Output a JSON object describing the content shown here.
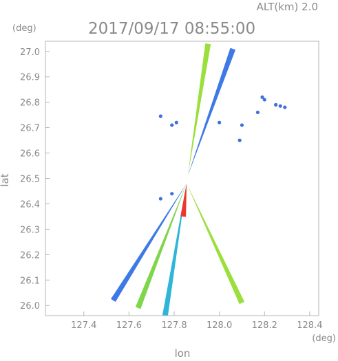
{
  "header": {
    "alt_label": "ALT(km)  2.0",
    "timestamp": "2017/09/17 08:55:00",
    "y_unit": "(deg)",
    "x_unit": "(deg)"
  },
  "chart_data": {
    "type": "scatter",
    "title": "2017/09/17 08:55:00",
    "subtitle": "ALT(km)  2.0",
    "xlabel": "lon",
    "ylabel": "lat",
    "xunit": "(deg)",
    "yunit": "(deg)",
    "xlim": [
      127.23,
      128.44
    ],
    "ylim": [
      25.96,
      27.04
    ],
    "grid": false,
    "legend": "none",
    "x_ticks": [
      {
        "value": 127.4,
        "label": "127.4"
      },
      {
        "value": 127.6,
        "label": "127.6"
      },
      {
        "value": 127.8,
        "label": "127.8"
      },
      {
        "value": 128.0,
        "label": "128.0"
      },
      {
        "value": 128.2,
        "label": "128.2"
      },
      {
        "value": 128.4,
        "label": "128.4"
      }
    ],
    "y_ticks": [
      {
        "value": 26.0,
        "label": "26.0"
      },
      {
        "value": 26.1,
        "label": "26.1"
      },
      {
        "value": 26.2,
        "label": "26.2"
      },
      {
        "value": 26.3,
        "label": "26.3"
      },
      {
        "value": 26.4,
        "label": "26.4"
      },
      {
        "value": 26.5,
        "label": "26.5"
      },
      {
        "value": 26.6,
        "label": "26.6"
      },
      {
        "value": 26.7,
        "label": "26.7"
      },
      {
        "value": 26.8,
        "label": "26.8"
      },
      {
        "value": 26.9,
        "label": "26.9"
      },
      {
        "value": 27.0,
        "label": "27.0"
      }
    ],
    "scan_origins": [
      {
        "lon": 127.855,
        "lat": 26.48
      },
      {
        "lon": 127.86,
        "lat": 26.51
      }
    ],
    "radial_streaks": [
      {
        "origin": 0,
        "end": {
          "lon": 127.53,
          "lat": 26.02
        },
        "color": "#3d7ae6"
      },
      {
        "origin": 0,
        "end": {
          "lon": 127.64,
          "lat": 25.99
        },
        "color": "#7fd64a"
      },
      {
        "origin": 0,
        "end": {
          "lon": 127.76,
          "lat": 25.96
        },
        "color": "#2fb5d8"
      },
      {
        "origin": 0,
        "end": {
          "lon": 128.1,
          "lat": 26.01
        },
        "color": "#9adf3c"
      },
      {
        "origin": 0,
        "end": {
          "lon": 127.84,
          "lat": 26.35
        },
        "color": "#e83a2f"
      },
      {
        "origin": 1,
        "end": {
          "lon": 127.95,
          "lat": 27.03
        },
        "color": "#9adf3c"
      },
      {
        "origin": 1,
        "end": {
          "lon": 128.06,
          "lat": 27.01
        },
        "color": "#3d7ae6"
      }
    ],
    "echo_points": [
      {
        "lon": 128.19,
        "lat": 26.82,
        "color": "#3d6fe0"
      },
      {
        "lon": 128.2,
        "lat": 26.81,
        "color": "#3d6fe0"
      },
      {
        "lon": 128.25,
        "lat": 26.79,
        "color": "#3d6fe0"
      },
      {
        "lon": 128.27,
        "lat": 26.785,
        "color": "#3d6fe0"
      },
      {
        "lon": 128.29,
        "lat": 26.78,
        "color": "#3d6fe0"
      },
      {
        "lon": 128.17,
        "lat": 26.76,
        "color": "#3d6fe0"
      },
      {
        "lon": 128.1,
        "lat": 26.71,
        "color": "#3d6fe0"
      },
      {
        "lon": 128.09,
        "lat": 26.65,
        "color": "#3d6fe0"
      },
      {
        "lon": 128.0,
        "lat": 26.72,
        "color": "#3d6fe0"
      },
      {
        "lon": 127.79,
        "lat": 26.71,
        "color": "#3d6fe0"
      },
      {
        "lon": 127.81,
        "lat": 26.72,
        "color": "#3d6fe0"
      },
      {
        "lon": 127.74,
        "lat": 26.745,
        "color": "#3d6fe0"
      },
      {
        "lon": 127.74,
        "lat": 26.42,
        "color": "#3d6fe0"
      },
      {
        "lon": 127.79,
        "lat": 26.44,
        "color": "#3d6fe0"
      }
    ]
  }
}
